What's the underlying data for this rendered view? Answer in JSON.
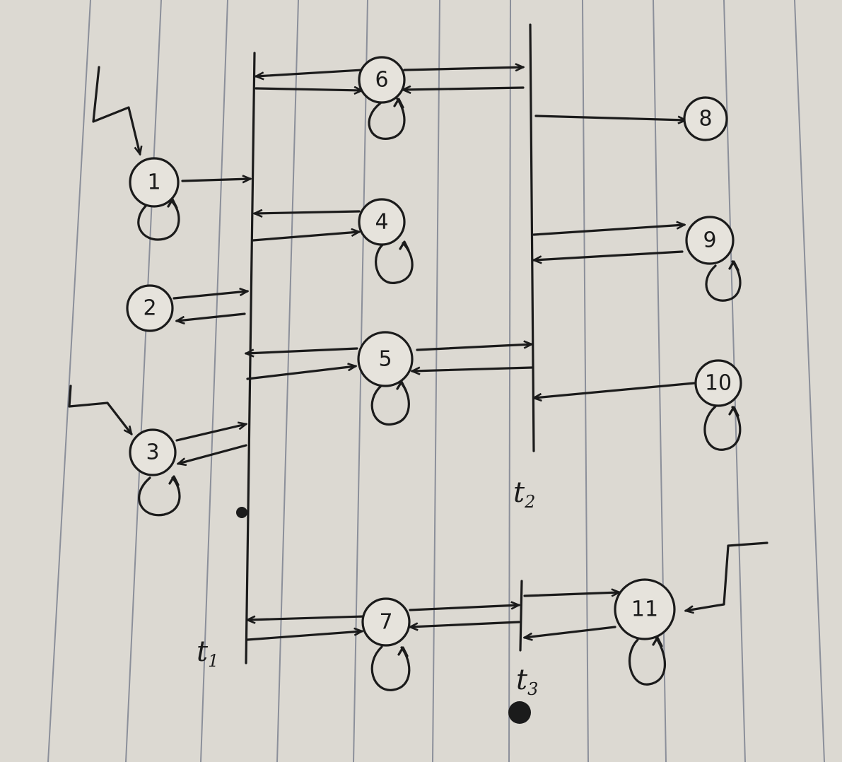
{
  "diagram": {
    "nodes": [
      {
        "id": "1",
        "label": "1",
        "self_loop": true
      },
      {
        "id": "2",
        "label": "2",
        "self_loop": false
      },
      {
        "id": "3",
        "label": "3",
        "self_loop": true
      },
      {
        "id": "4",
        "label": "4",
        "self_loop": true
      },
      {
        "id": "5",
        "label": "5",
        "self_loop": true
      },
      {
        "id": "6",
        "label": "6",
        "self_loop": true
      },
      {
        "id": "7",
        "label": "7",
        "self_loop": true
      },
      {
        "id": "8",
        "label": "8",
        "self_loop": false
      },
      {
        "id": "9",
        "label": "9",
        "self_loop": true
      },
      {
        "id": "10",
        "label": "10",
        "self_loop": true
      },
      {
        "id": "11",
        "label": "11",
        "self_loop": true
      }
    ],
    "bars": [
      {
        "id": "t1",
        "label": "t",
        "sub": "1"
      },
      {
        "id": "t2",
        "label": "t",
        "sub": "2"
      },
      {
        "id": "t3",
        "label": "t",
        "sub": "3"
      }
    ],
    "initial_nodes": [
      "1",
      "3",
      "11"
    ],
    "edges": [
      {
        "from": "1",
        "to": "t1"
      },
      {
        "from": "2",
        "to": "t1"
      },
      {
        "from": "t1",
        "to": "2"
      },
      {
        "from": "3",
        "to": "t1"
      },
      {
        "from": "t1",
        "to": "3"
      },
      {
        "from": "4",
        "to": "t1"
      },
      {
        "from": "t1",
        "to": "4"
      },
      {
        "from": "5",
        "to": "t1"
      },
      {
        "from": "t1",
        "to": "5"
      },
      {
        "from": "6",
        "to": "t1"
      },
      {
        "from": "t1",
        "to": "6"
      },
      {
        "from": "7",
        "to": "t1"
      },
      {
        "from": "t1",
        "to": "7"
      },
      {
        "from": "6",
        "to": "t2"
      },
      {
        "from": "t2",
        "to": "6"
      },
      {
        "from": "5",
        "to": "t2"
      },
      {
        "from": "t2",
        "to": "5"
      },
      {
        "from": "t2",
        "to": "8"
      },
      {
        "from": "t2",
        "to": "9"
      },
      {
        "from": "9",
        "to": "t2"
      },
      {
        "from": "10",
        "to": "t2"
      },
      {
        "from": "7",
        "to": "t3"
      },
      {
        "from": "t3",
        "to": "7"
      },
      {
        "from": "t3",
        "to": "11"
      },
      {
        "from": "11",
        "to": "t3"
      }
    ]
  }
}
